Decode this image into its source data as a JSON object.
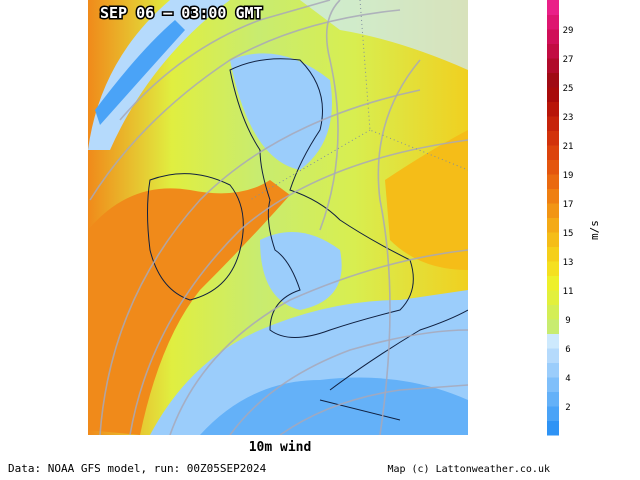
{
  "header": {
    "title": "SEP 06 – 03:00 GMT"
  },
  "map": {
    "caption": "10m wind"
  },
  "colorbar": {
    "unit": "m/s",
    "ticks": [
      2,
      4,
      6,
      9,
      11,
      13,
      15,
      17,
      19,
      21,
      23,
      25,
      27,
      29
    ],
    "colors": [
      "#2e93f5",
      "#4aa3f7",
      "#64b1f8",
      "#7fbffa",
      "#9bcdfb",
      "#b5dafc",
      "#cde9fd",
      "#c8ec70",
      "#d4ee55",
      "#e2f03c",
      "#eef02a",
      "#f5e020",
      "#f5cf1a",
      "#f5bd18",
      "#f4aa16",
      "#f29514",
      "#ef7f12",
      "#ea6a10",
      "#e4560e",
      "#dc430c",
      "#d2320b",
      "#c6230a",
      "#b81509",
      "#a80a0a",
      "#a00a14",
      "#b00a2a",
      "#c20c42",
      "#d00f58",
      "#de1670",
      "#ea2088"
    ]
  },
  "footer": {
    "source": "Data: NOAA GFS model, run: 00Z05SEP2024",
    "credit": "Map (c) Lattonweather.co.uk"
  }
}
